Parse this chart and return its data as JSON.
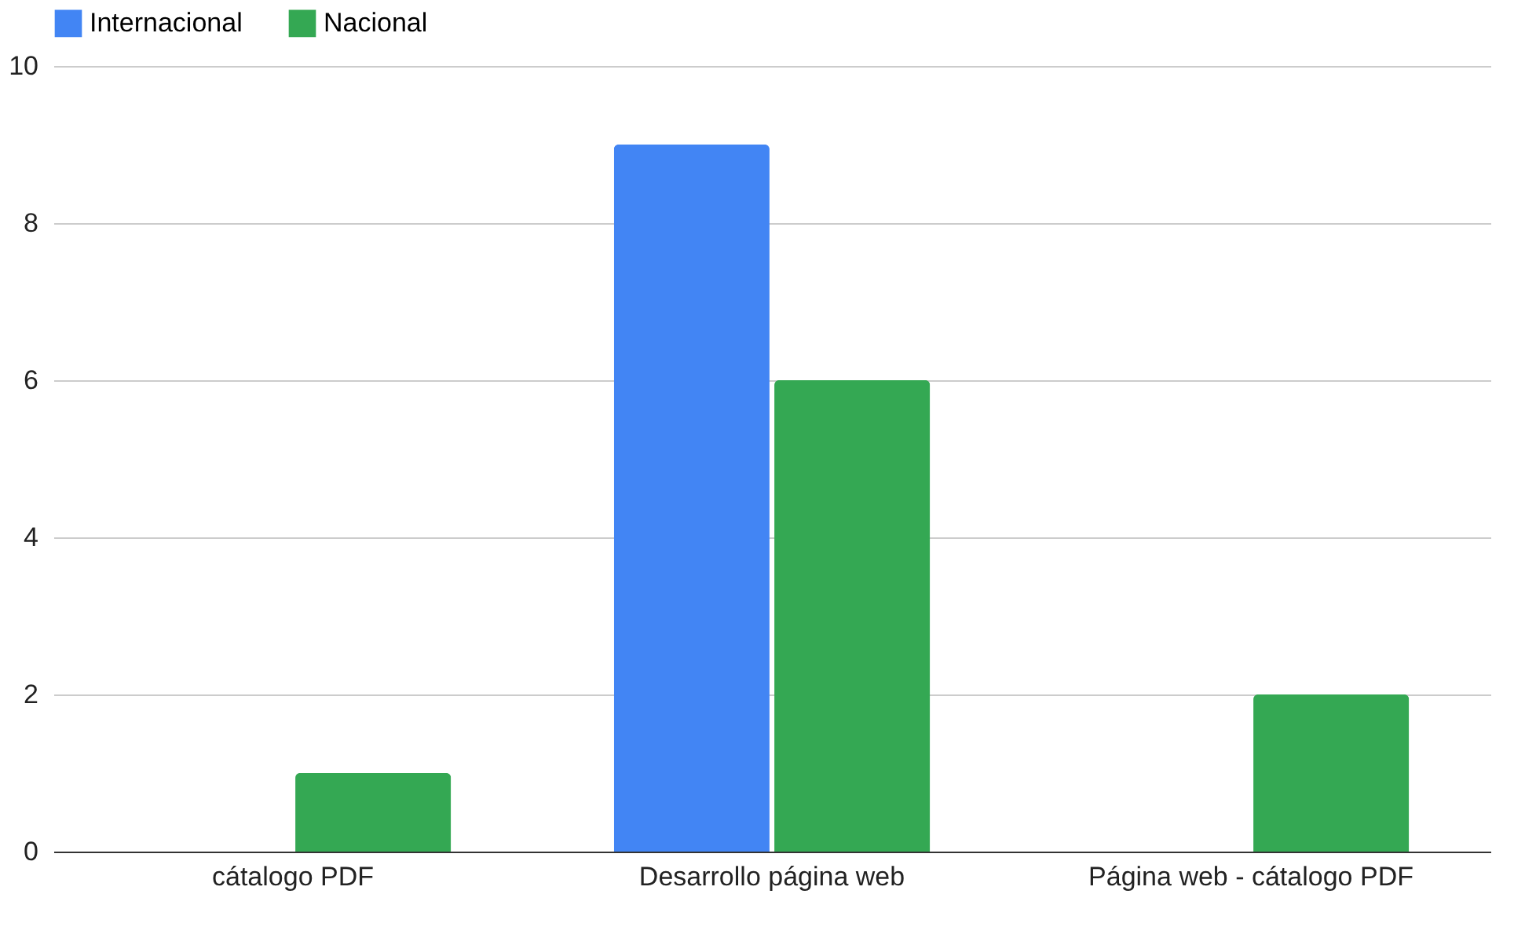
{
  "chart_data": {
    "type": "bar",
    "categories": [
      "cátalogo PDF",
      "Desarrollo página web",
      "Página web - cátalogo PDF"
    ],
    "series": [
      {
        "name": "Internacional",
        "color": "#4285f4",
        "values": [
          null,
          9,
          null
        ]
      },
      {
        "name": "Nacional",
        "color": "#34a853",
        "values": [
          1,
          6,
          2
        ]
      }
    ],
    "ylim": [
      0,
      10
    ],
    "yticks": [
      0,
      2,
      4,
      6,
      8,
      10
    ],
    "grid": "y",
    "legend": "top"
  }
}
